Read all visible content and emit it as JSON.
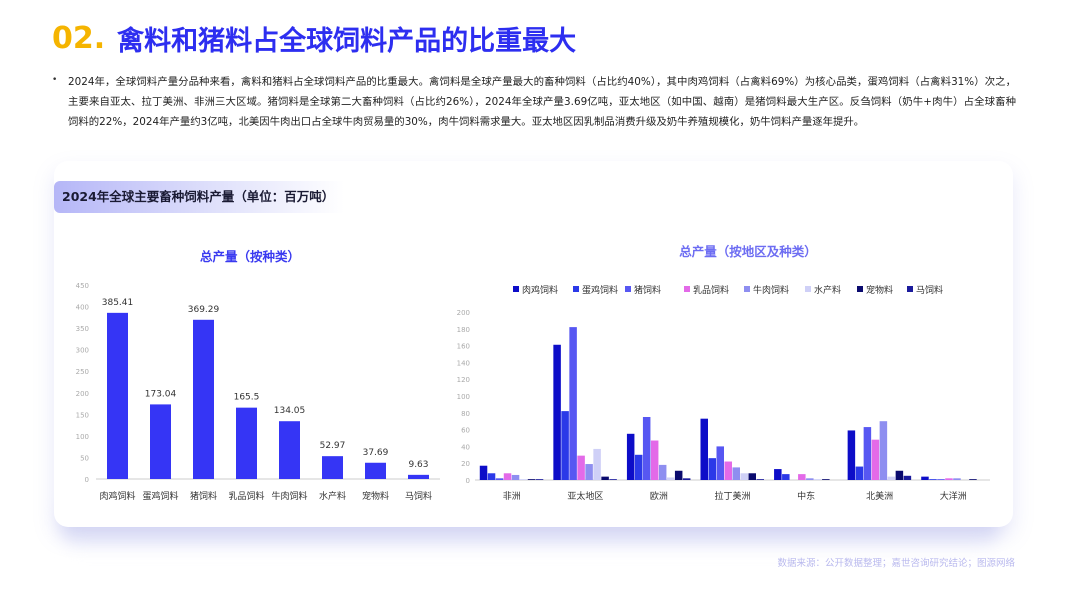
{
  "header": {
    "number": "02.",
    "title": "禽料和猪料占全球饲料产品的比重最大"
  },
  "description": {
    "bullet": "•",
    "text": "2024年，全球饲料产量分品种来看，禽料和猪料占全球饲料产品的比重最大。禽饲料是全球产量最大的畜种饲料（占比约40%），其中肉鸡饲料（占禽料69%）为核心品类，蛋鸡饲料（占禽料31%）次之，主要来自亚太、拉丁美洲、非洲三大区域。猪饲料是全球第二大畜种饲料（占比约26%），2024年全球产量3.69亿吨，亚太地区（如中国、越南）是猪饲料最大生产区。反刍饲料（奶牛+肉牛）占全球畜种饲料的22%，2024年产量约3亿吨，北美因牛肉出口占全球牛肉贸易量的30%，肉牛饲料需求量大。亚太地区因乳制品消费升级及奶牛养殖规模化，奶牛饲料产量逐年提升。"
  },
  "card": {
    "title": "2024年全球主要畜种饲料产量（单位：百万吨）"
  },
  "source": "数据来源：公开数据整理；嘉世咨询研究结论；图源网络",
  "colors": {
    "title_number": "#f5b400",
    "title_text": "#2d2ef0",
    "bar_main": "#3535f5",
    "chart_title": "#3a3af0"
  },
  "chart_data": [
    {
      "type": "bar",
      "title": "总产量（按种类）",
      "categories": [
        "肉鸡饲料",
        "蛋鸡饲料",
        "猪饲料",
        "乳品饲料",
        "牛肉饲料",
        "水产料",
        "宠物料",
        "马饲料"
      ],
      "values": [
        385.41,
        173.04,
        369.29,
        165.5,
        134.05,
        52.97,
        37.69,
        9.63
      ],
      "data_labels": [
        "385.41",
        "173.04",
        "369.29",
        "165.5",
        "134.05",
        "52.97",
        "37.69",
        "9.63"
      ],
      "ylim": [
        0,
        450
      ],
      "yticks": [
        "0",
        "50",
        "100",
        "150",
        "200",
        "250",
        "300",
        "350",
        "400",
        "450"
      ],
      "grid": false,
      "legend": "none"
    },
    {
      "type": "bar",
      "title": "总产量（按地区及种类）",
      "categories": [
        "非洲",
        "亚太地区",
        "欧洲",
        "拉丁美洲",
        "中东",
        "北美洲",
        "大洋洲"
      ],
      "series": [
        {
          "name": "肉鸡饲料",
          "color": "#0d0dc8",
          "values": [
            17,
            161,
            55,
            73,
            13,
            59,
            4
          ]
        },
        {
          "name": "蛋鸡饲料",
          "color": "#2b39e8",
          "values": [
            8,
            82,
            30,
            26,
            7,
            16,
            1
          ]
        },
        {
          "name": "猪饲料",
          "color": "#5757f2",
          "values": [
            2,
            182,
            75,
            40,
            0,
            63,
            1
          ]
        },
        {
          "name": "乳品饲料",
          "color": "#e36ae8",
          "values": [
            8,
            29,
            47,
            22,
            7,
            48,
            2
          ]
        },
        {
          "name": "牛肉饲料",
          "color": "#8e8ef0",
          "values": [
            6,
            19,
            18,
            15,
            2,
            70,
            2
          ]
        },
        {
          "name": "水产料",
          "color": "#cfd0f7",
          "values": [
            1,
            37,
            3,
            8,
            1,
            4,
            0
          ]
        },
        {
          "name": "宠物料",
          "color": "#0a0a6e",
          "values": [
            1,
            4,
            11,
            8,
            1,
            11,
            1
          ]
        },
        {
          "name": "马饲料",
          "color": "#1b1b9c",
          "values": [
            1,
            1,
            2,
            1,
            0,
            5,
            0
          ]
        }
      ],
      "ylim": [
        0,
        200
      ],
      "yticks": [
        "0",
        "20",
        "40",
        "60",
        "80",
        "100",
        "120",
        "140",
        "160",
        "180",
        "200"
      ],
      "grid": false,
      "legend": "top"
    }
  ]
}
